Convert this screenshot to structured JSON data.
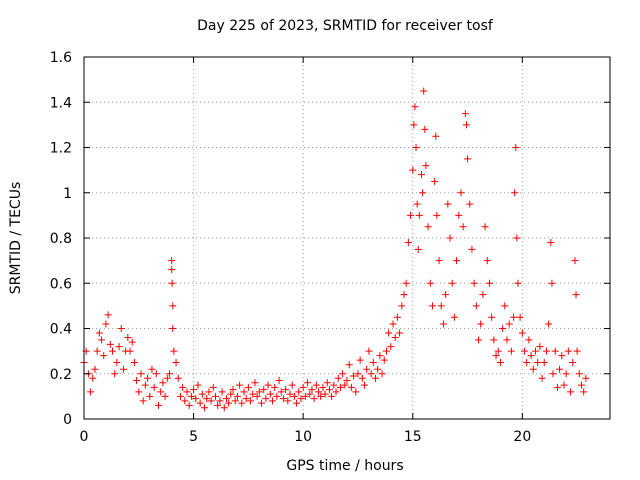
{
  "chart_data": {
    "type": "scatter",
    "title": "Day 225 of 2023, SRMTID for receiver tosf",
    "xlabel": "GPS time / hours",
    "ylabel": "SRMTID / TECUs",
    "xlim": [
      0,
      24
    ],
    "ylim": [
      0,
      1.6
    ],
    "x_ticks": [
      0,
      5,
      10,
      15,
      20
    ],
    "x_tick_labels": [
      "0",
      "5",
      "10",
      "15",
      "20"
    ],
    "y_ticks": [
      0,
      0.2,
      0.4,
      0.6,
      0.8,
      1,
      1.2,
      1.4,
      1.6
    ],
    "y_tick_labels": [
      "0",
      "0.2",
      "0.4",
      "0.6",
      "0.8",
      "1",
      "1.2",
      "1.4",
      "1.6"
    ],
    "grid": true,
    "marker": "+",
    "marker_color": "#ff0000",
    "series": [
      {
        "name": "SRMTID",
        "points": [
          [
            0.0,
            0.25
          ],
          [
            0.1,
            0.3
          ],
          [
            0.2,
            0.2
          ],
          [
            0.3,
            0.12
          ],
          [
            0.4,
            0.18
          ],
          [
            0.5,
            0.22
          ],
          [
            0.6,
            0.3
          ],
          [
            0.7,
            0.38
          ],
          [
            0.8,
            0.35
          ],
          [
            0.9,
            0.28
          ],
          [
            1.0,
            0.42
          ],
          [
            1.1,
            0.46
          ],
          [
            1.2,
            0.33
          ],
          [
            1.3,
            0.3
          ],
          [
            1.4,
            0.2
          ],
          [
            1.5,
            0.25
          ],
          [
            1.6,
            0.32
          ],
          [
            1.7,
            0.4
          ],
          [
            1.8,
            0.22
          ],
          [
            1.9,
            0.3
          ],
          [
            2.0,
            0.36
          ],
          [
            2.1,
            0.3
          ],
          [
            2.2,
            0.34
          ],
          [
            2.3,
            0.25
          ],
          [
            2.4,
            0.17
          ],
          [
            2.5,
            0.12
          ],
          [
            2.6,
            0.2
          ],
          [
            2.7,
            0.08
          ],
          [
            2.8,
            0.15
          ],
          [
            2.9,
            0.18
          ],
          [
            3.0,
            0.1
          ],
          [
            3.1,
            0.22
          ],
          [
            3.2,
            0.14
          ],
          [
            3.3,
            0.2
          ],
          [
            3.4,
            0.06
          ],
          [
            3.5,
            0.12
          ],
          [
            3.6,
            0.16
          ],
          [
            3.7,
            0.1
          ],
          [
            3.8,
            0.18
          ],
          [
            3.9,
            0.2
          ],
          [
            4.0,
            0.7
          ],
          [
            4.0,
            0.66
          ],
          [
            4.02,
            0.6
          ],
          [
            4.05,
            0.5
          ],
          [
            4.05,
            0.4
          ],
          [
            4.1,
            0.3
          ],
          [
            4.2,
            0.25
          ],
          [
            4.3,
            0.18
          ],
          [
            4.4,
            0.1
          ],
          [
            4.5,
            0.14
          ],
          [
            4.6,
            0.08
          ],
          [
            4.7,
            0.12
          ],
          [
            4.8,
            0.06
          ],
          [
            4.9,
            0.1
          ],
          [
            5.0,
            0.13
          ],
          [
            5.1,
            0.09
          ],
          [
            5.2,
            0.15
          ],
          [
            5.3,
            0.07
          ],
          [
            5.4,
            0.11
          ],
          [
            5.5,
            0.05
          ],
          [
            5.6,
            0.09
          ],
          [
            5.7,
            0.12
          ],
          [
            5.8,
            0.08
          ],
          [
            5.9,
            0.14
          ],
          [
            6.0,
            0.1
          ],
          [
            6.1,
            0.06
          ],
          [
            6.2,
            0.08
          ],
          [
            6.3,
            0.12
          ],
          [
            6.4,
            0.05
          ],
          [
            6.5,
            0.09
          ],
          [
            6.6,
            0.07
          ],
          [
            6.7,
            0.11
          ],
          [
            6.8,
            0.13
          ],
          [
            6.9,
            0.08
          ],
          [
            7.0,
            0.1
          ],
          [
            7.1,
            0.15
          ],
          [
            7.2,
            0.07
          ],
          [
            7.3,
            0.12
          ],
          [
            7.4,
            0.09
          ],
          [
            7.5,
            0.14
          ],
          [
            7.6,
            0.08
          ],
          [
            7.7,
            0.11
          ],
          [
            7.8,
            0.16
          ],
          [
            7.9,
            0.1
          ],
          [
            8.0,
            0.12
          ],
          [
            8.1,
            0.07
          ],
          [
            8.2,
            0.13
          ],
          [
            8.3,
            0.09
          ],
          [
            8.4,
            0.15
          ],
          [
            8.5,
            0.11
          ],
          [
            8.6,
            0.08
          ],
          [
            8.7,
            0.14
          ],
          [
            8.8,
            0.1
          ],
          [
            8.9,
            0.17
          ],
          [
            9.0,
            0.12
          ],
          [
            9.1,
            0.09
          ],
          [
            9.2,
            0.13
          ],
          [
            9.3,
            0.08
          ],
          [
            9.4,
            0.11
          ],
          [
            9.5,
            0.15
          ],
          [
            9.6,
            0.1
          ],
          [
            9.7,
            0.07
          ],
          [
            9.8,
            0.12
          ],
          [
            9.9,
            0.09
          ],
          [
            10.0,
            0.14
          ],
          [
            10.1,
            0.1
          ],
          [
            10.2,
            0.16
          ],
          [
            10.3,
            0.11
          ],
          [
            10.4,
            0.13
          ],
          [
            10.5,
            0.09
          ],
          [
            10.6,
            0.15
          ],
          [
            10.7,
            0.12
          ],
          [
            10.8,
            0.1
          ],
          [
            10.9,
            0.14
          ],
          [
            11.0,
            0.11
          ],
          [
            11.1,
            0.16
          ],
          [
            11.2,
            0.13
          ],
          [
            11.3,
            0.1
          ],
          [
            11.4,
            0.15
          ],
          [
            11.5,
            0.12
          ],
          [
            11.6,
            0.18
          ],
          [
            11.7,
            0.14
          ],
          [
            11.8,
            0.2
          ],
          [
            11.9,
            0.15
          ],
          [
            12.0,
            0.17
          ],
          [
            12.1,
            0.24
          ],
          [
            12.2,
            0.14
          ],
          [
            12.3,
            0.19
          ],
          [
            12.4,
            0.12
          ],
          [
            12.5,
            0.2
          ],
          [
            12.6,
            0.26
          ],
          [
            12.7,
            0.18
          ],
          [
            12.8,
            0.15
          ],
          [
            12.9,
            0.22
          ],
          [
            13.0,
            0.3
          ],
          [
            13.1,
            0.2
          ],
          [
            13.2,
            0.25
          ],
          [
            13.3,
            0.18
          ],
          [
            13.4,
            0.22
          ],
          [
            13.5,
            0.28
          ],
          [
            13.6,
            0.2
          ],
          [
            13.7,
            0.26
          ],
          [
            13.8,
            0.3
          ],
          [
            13.9,
            0.38
          ],
          [
            14.0,
            0.32
          ],
          [
            14.1,
            0.42
          ],
          [
            14.2,
            0.36
          ],
          [
            14.3,
            0.45
          ],
          [
            14.4,
            0.38
          ],
          [
            14.5,
            0.5
          ],
          [
            14.6,
            0.55
          ],
          [
            14.7,
            0.6
          ],
          [
            14.8,
            0.78
          ],
          [
            14.9,
            0.9
          ],
          [
            15.0,
            1.1
          ],
          [
            15.05,
            1.3
          ],
          [
            15.1,
            1.38
          ],
          [
            15.15,
            1.2
          ],
          [
            15.2,
            0.95
          ],
          [
            15.25,
            0.75
          ],
          [
            15.3,
            0.9
          ],
          [
            15.4,
            1.08
          ],
          [
            15.45,
            1.0
          ],
          [
            15.5,
            1.45
          ],
          [
            15.55,
            1.28
          ],
          [
            15.6,
            1.12
          ],
          [
            15.7,
            0.85
          ],
          [
            15.8,
            0.6
          ],
          [
            15.9,
            0.5
          ],
          [
            16.0,
            1.05
          ],
          [
            16.05,
            1.25
          ],
          [
            16.1,
            0.9
          ],
          [
            16.2,
            0.7
          ],
          [
            16.3,
            0.5
          ],
          [
            16.4,
            0.42
          ],
          [
            16.5,
            0.55
          ],
          [
            16.6,
            0.95
          ],
          [
            16.7,
            0.8
          ],
          [
            16.8,
            0.6
          ],
          [
            16.9,
            0.45
          ],
          [
            17.0,
            0.7
          ],
          [
            17.1,
            0.9
          ],
          [
            17.2,
            1.0
          ],
          [
            17.3,
            0.85
          ],
          [
            17.4,
            1.35
          ],
          [
            17.45,
            1.3
          ],
          [
            17.5,
            1.15
          ],
          [
            17.6,
            0.95
          ],
          [
            17.7,
            0.75
          ],
          [
            17.8,
            0.6
          ],
          [
            17.9,
            0.5
          ],
          [
            18.0,
            0.35
          ],
          [
            18.1,
            0.42
          ],
          [
            18.2,
            0.55
          ],
          [
            18.3,
            0.85
          ],
          [
            18.4,
            0.7
          ],
          [
            18.5,
            0.6
          ],
          [
            18.6,
            0.45
          ],
          [
            18.7,
            0.35
          ],
          [
            18.8,
            0.28
          ],
          [
            18.9,
            0.3
          ],
          [
            19.0,
            0.25
          ],
          [
            19.1,
            0.4
          ],
          [
            19.2,
            0.5
          ],
          [
            19.3,
            0.35
          ],
          [
            19.4,
            0.42
          ],
          [
            19.5,
            0.3
          ],
          [
            19.6,
            0.45
          ],
          [
            19.65,
            1.0
          ],
          [
            19.7,
            1.2
          ],
          [
            19.75,
            0.8
          ],
          [
            19.8,
            0.6
          ],
          [
            19.9,
            0.45
          ],
          [
            20.0,
            0.38
          ],
          [
            20.1,
            0.3
          ],
          [
            20.2,
            0.25
          ],
          [
            20.3,
            0.35
          ],
          [
            20.4,
            0.28
          ],
          [
            20.5,
            0.22
          ],
          [
            20.6,
            0.3
          ],
          [
            20.7,
            0.25
          ],
          [
            20.8,
            0.32
          ],
          [
            20.9,
            0.18
          ],
          [
            21.0,
            0.25
          ],
          [
            21.1,
            0.3
          ],
          [
            21.2,
            0.42
          ],
          [
            21.3,
            0.78
          ],
          [
            21.35,
            0.6
          ],
          [
            21.4,
            0.2
          ],
          [
            21.5,
            0.3
          ],
          [
            21.6,
            0.14
          ],
          [
            21.7,
            0.22
          ],
          [
            21.8,
            0.28
          ],
          [
            21.9,
            0.15
          ],
          [
            22.0,
            0.2
          ],
          [
            22.1,
            0.3
          ],
          [
            22.2,
            0.12
          ],
          [
            22.3,
            0.25
          ],
          [
            22.4,
            0.7
          ],
          [
            22.45,
            0.55
          ],
          [
            22.5,
            0.3
          ],
          [
            22.6,
            0.2
          ],
          [
            22.7,
            0.15
          ],
          [
            22.8,
            0.12
          ],
          [
            22.9,
            0.18
          ]
        ]
      }
    ]
  }
}
